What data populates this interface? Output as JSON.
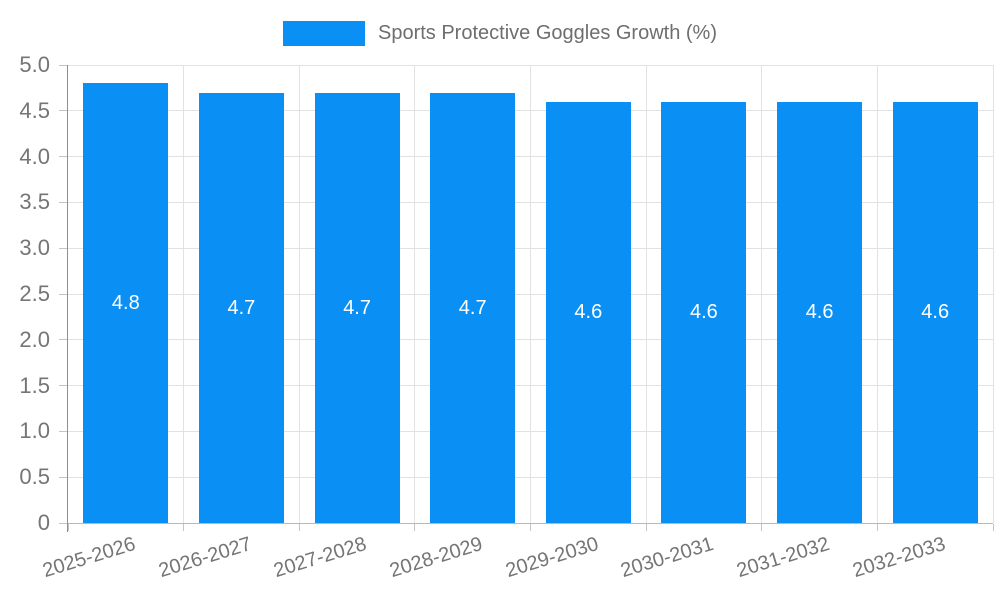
{
  "legend": {
    "label": "Sports Protective Goggles Growth (%)"
  },
  "colors": {
    "background": "#FFFFFF",
    "bar": "#0A90F5",
    "bar_label": "#FFFFFF",
    "grid": "#E2E2E2",
    "y_axis_line": "#8F8F8F",
    "x_axis_line": "#B8B8B8",
    "tick": "#C4C4C4",
    "axis_label": "#757575",
    "legend_label": "#6E6E6E"
  },
  "chart_data": {
    "type": "bar",
    "title": "Sports Protective Goggles Growth (%)",
    "categories": [
      "2025-2026",
      "2026-2027",
      "2027-2028",
      "2028-2029",
      "2029-2030",
      "2030-2031",
      "2031-2032",
      "2032-2033"
    ],
    "values": [
      4.8,
      4.7,
      4.7,
      4.7,
      4.6,
      4.6,
      4.6,
      4.6
    ],
    "bar_labels": [
      "4.8",
      "4.7",
      "4.7",
      "4.7",
      "4.6",
      "4.6",
      "4.6",
      "4.6"
    ],
    "xlabel": "",
    "ylabel": "",
    "ylim": [
      0,
      5
    ],
    "ytick_step": 0.5,
    "ytick_labels": [
      "0",
      "0.5",
      "1.0",
      "1.5",
      "2.0",
      "2.5",
      "3.0",
      "3.5",
      "4.0",
      "4.5",
      "5.0"
    ],
    "grid": true,
    "legend_position": "top-center",
    "x_label_rotation_deg": -17
  }
}
